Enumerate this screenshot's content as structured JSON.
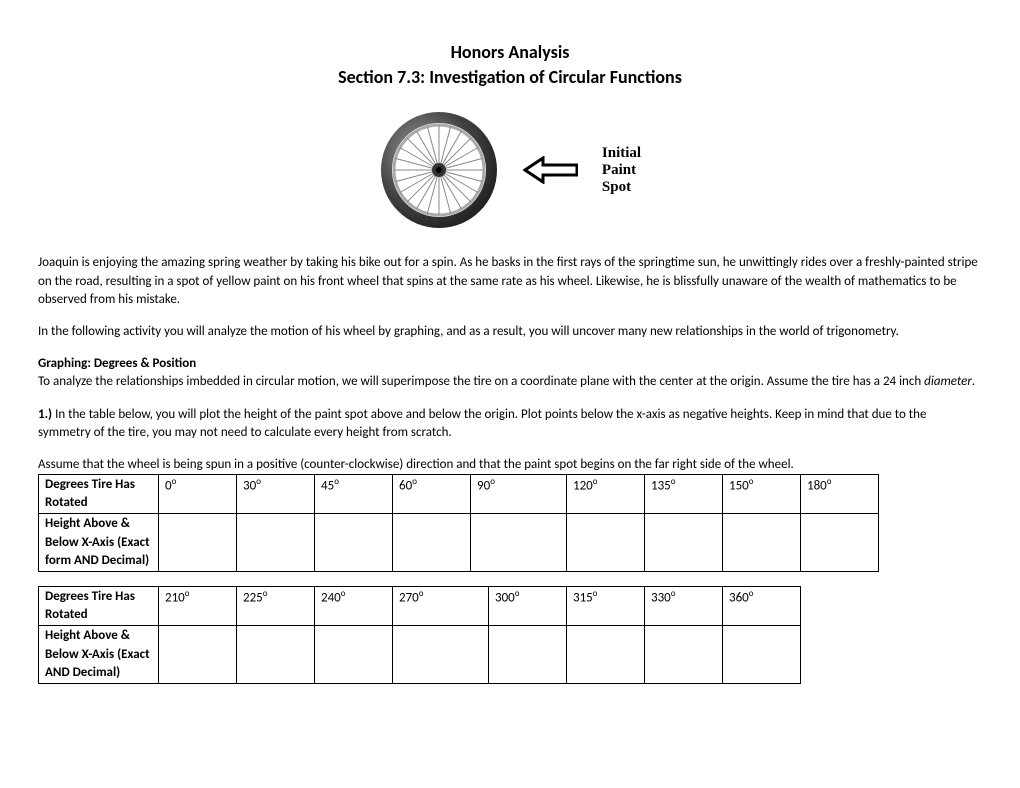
{
  "header": {
    "title": "Honors Analysis",
    "subtitle": "Section 7.3: Investigation of Circular Functions"
  },
  "wheelGraphic": {
    "wheel": {
      "tireOuterRadius": 58,
      "tireInnerRadius": 47,
      "rimRadius": 45,
      "hubRadius": 7,
      "capRadius": 3,
      "spokeCount": 24,
      "tireColor": "#444444",
      "tireHighlight": "#9a9a9a",
      "rimColor": "#aaaaaa",
      "spokeColor": "#888888",
      "hubColor": "#333333",
      "capColor": "#000000"
    },
    "arrow": {
      "strokeColor": "#000000",
      "strokeWidth": 3,
      "fillColor": "#ffffff"
    },
    "label": {
      "line1": "Initial",
      "line2": "Paint",
      "line3": "Spot"
    }
  },
  "body": {
    "p1": "Joaquin is enjoying the amazing spring weather by taking his bike out for a spin.  As he basks in the first rays of the springtime sun, he unwittingly rides over a freshly-painted stripe on the road, resulting in a spot of yellow paint on his front wheel that spins at the same rate as his wheel.  Likewise, he is blissfully unaware of the wealth of mathematics to be observed from his mistake.",
    "p2": "In the following activity you will analyze the motion of his wheel by graphing, and as a result, you will uncover many new relationships in the world of trigonometry.",
    "subhead1": "Graphing:  Degrees & Position",
    "p3a": "To analyze the relationships imbedded in circular motion, we will superimpose the tire on a coordinate plane with the center at the origin.  Assume the tire has a 24 inch ",
    "p3b": "diameter",
    "p3c": ".",
    "q1_bold": "1.)",
    "q1": " In the table below, you will plot the height of the paint spot above and below the origin.  Plot points below the x-axis as negative heights.  Keep in mind that due to the symmetry of the tire, you may not need to calculate every height from scratch.",
    "p4": "Assume that the wheel is being spun in a positive (counter-clockwise) direction and that the paint spot begins on the far right side of the wheel."
  },
  "tables": {
    "row1Label": "Degrees Tire Has Rotated",
    "row2LabelA": "Height Above & Below X-Axis (Exact form AND Decimal)",
    "row2LabelB": "Height Above & Below X-Axis (Exact AND Decimal)",
    "t1": {
      "headers": [
        "0",
        "30",
        "45",
        "60",
        "90",
        "120",
        "135",
        "150",
        "180"
      ],
      "widths": [
        "cn",
        "cn",
        "cn",
        "cn",
        "cw",
        "cn",
        "cn",
        "cn",
        "cn"
      ]
    },
    "t2": {
      "headers": [
        "210",
        "225",
        "240",
        "270",
        "300",
        "315",
        "330",
        "360"
      ],
      "widths": [
        "cn",
        "cn",
        "cn",
        "cw",
        "cn",
        "cn",
        "cn",
        "cn"
      ]
    }
  }
}
